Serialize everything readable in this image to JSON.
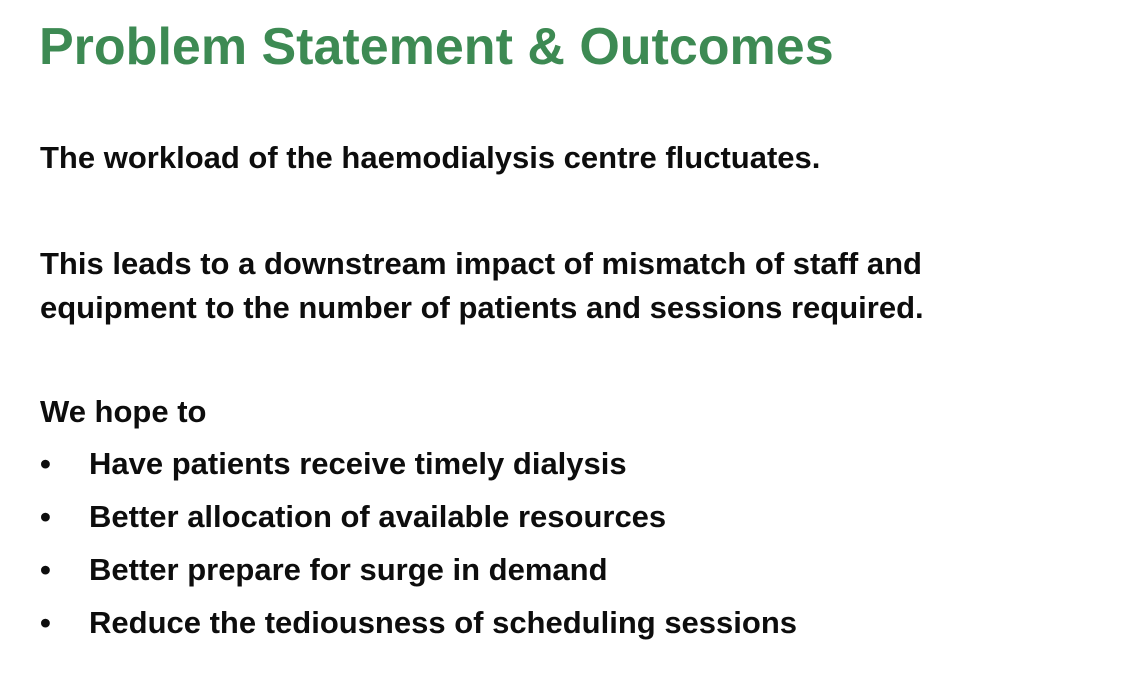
{
  "slide": {
    "title": "Problem Statement & Outcomes",
    "paragraph_1": "The workload of the haemodialysis centre fluctuates.",
    "paragraph_2_line_1": "This leads to a downstream impact of mismatch of staff and",
    "paragraph_2_line_2": "equipment to the number of patients and sessions required.",
    "intro": "We hope to",
    "bullet_marker": "•",
    "bullets": [
      "Have patients receive timely dialysis",
      "Better allocation of available resources",
      "Better prepare for surge in demand",
      "Reduce the tediousness of scheduling sessions"
    ]
  },
  "colors": {
    "title": "#3d8a53",
    "text": "#0d0d0d",
    "background": "#ffffff"
  }
}
